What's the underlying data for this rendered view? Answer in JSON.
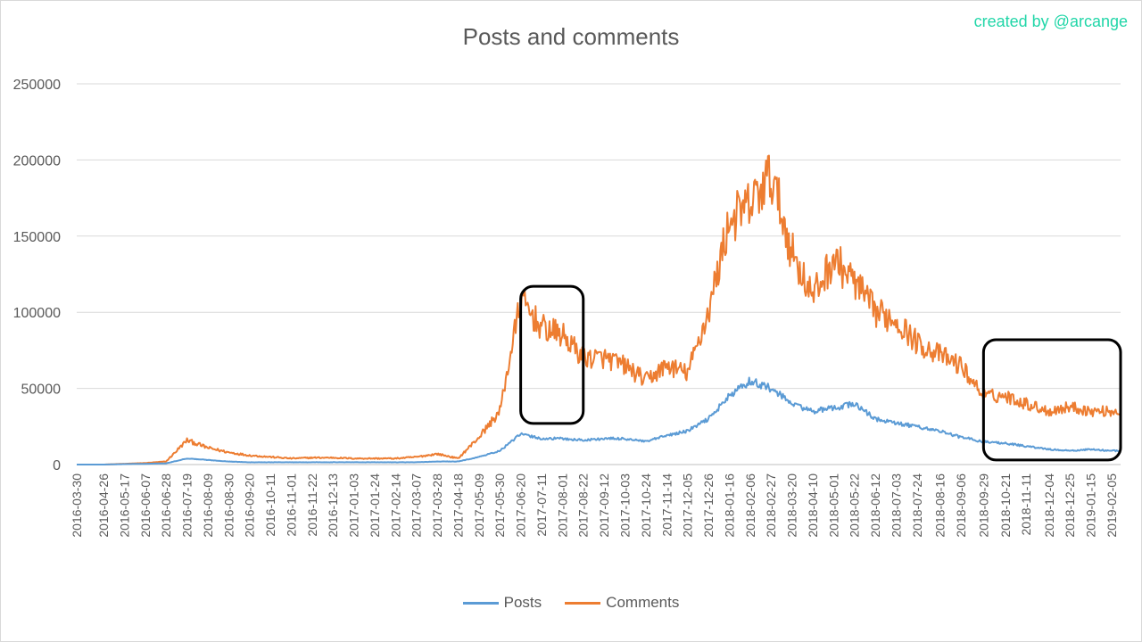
{
  "credit": "created by @arcange",
  "chart_data": {
    "type": "line",
    "title": "Posts and comments",
    "xlabel": "",
    "ylabel": "",
    "ylim": [
      0,
      250000
    ],
    "yticks": [
      0,
      50000,
      100000,
      150000,
      200000,
      250000
    ],
    "grid": "horizontal",
    "legend_position": "bottom",
    "x_tick_labels": [
      "2016-03-30",
      "2016-04-26",
      "2016-05-17",
      "2016-06-07",
      "2016-06-28",
      "2016-07-19",
      "2016-08-09",
      "2016-08-30",
      "2016-09-20",
      "2016-10-11",
      "2016-11-01",
      "2016-11-22",
      "2016-12-13",
      "2017-01-03",
      "2017-01-24",
      "2017-02-14",
      "2017-03-07",
      "2017-03-28",
      "2017-04-18",
      "2017-05-09",
      "2017-05-30",
      "2017-06-20",
      "2017-07-11",
      "2017-08-01",
      "2017-08-22",
      "2017-09-12",
      "2017-10-03",
      "2017-10-24",
      "2017-11-14",
      "2017-12-05",
      "2017-12-26",
      "2018-01-16",
      "2018-02-06",
      "2018-02-27",
      "2018-03-20",
      "2018-04-10",
      "2018-05-01",
      "2018-05-22",
      "2018-06-12",
      "2018-07-03",
      "2018-07-24",
      "2018-08-16",
      "2018-09-06",
      "2018-09-29",
      "2018-10-21",
      "2018-11-11",
      "2018-12-04",
      "2018-12-25",
      "2019-01-15",
      "2019-02-05"
    ],
    "x_dates": [
      "2016-03-30",
      "2016-04-26",
      "2016-05-17",
      "2016-06-07",
      "2016-06-28",
      "2016-07-19",
      "2016-08-09",
      "2016-08-30",
      "2016-09-20",
      "2016-10-11",
      "2016-11-01",
      "2016-11-22",
      "2016-12-13",
      "2017-01-03",
      "2017-01-24",
      "2017-02-14",
      "2017-03-07",
      "2017-03-28",
      "2017-04-18",
      "2017-05-09",
      "2017-05-30",
      "2017-06-20",
      "2017-07-11",
      "2017-08-01",
      "2017-08-22",
      "2017-09-12",
      "2017-10-03",
      "2017-10-24",
      "2017-11-14",
      "2017-12-05",
      "2017-12-26",
      "2018-01-16",
      "2018-02-06",
      "2018-02-27",
      "2018-03-20",
      "2018-04-10",
      "2018-05-01",
      "2018-05-22",
      "2018-06-12",
      "2018-07-03",
      "2018-07-24",
      "2018-08-16",
      "2018-09-06",
      "2018-09-29",
      "2018-10-21",
      "2018-11-11",
      "2018-12-04",
      "2018-12-25",
      "2019-01-15",
      "2019-02-05",
      "2019-02-14"
    ],
    "series": [
      {
        "name": "Posts",
        "color": "#5b9bd5",
        "values": [
          0,
          0,
          300,
          500,
          800,
          4000,
          3000,
          2000,
          1500,
          1500,
          1500,
          1500,
          1500,
          1500,
          1500,
          1500,
          1500,
          2000,
          2000,
          5000,
          9000,
          20000,
          17000,
          17000,
          16000,
          17000,
          17000,
          15000,
          19000,
          22000,
          30000,
          45000,
          55000,
          50000,
          40000,
          35000,
          37000,
          40000,
          30000,
          27000,
          25000,
          22000,
          18000,
          15000,
          14000,
          12000,
          10000,
          9000,
          10000,
          9000,
          9000
        ]
      },
      {
        "name": "Comments",
        "color": "#ed7d31",
        "values": [
          0,
          0,
          500,
          1000,
          2000,
          16000,
          11000,
          8000,
          6000,
          5000,
          4000,
          4500,
          4500,
          4000,
          4000,
          4000,
          5000,
          7000,
          4000,
          18000,
          35000,
          108000,
          90000,
          85000,
          70000,
          70000,
          65000,
          55000,
          65000,
          60000,
          100000,
          160000,
          170000,
          190000,
          140000,
          110000,
          135000,
          120000,
          100000,
          95000,
          80000,
          72000,
          65000,
          45000,
          45000,
          40000,
          35000,
          38000,
          35000,
          35000,
          35000
        ]
      }
    ],
    "annotations": [
      {
        "type": "box",
        "from": "2017-06-20",
        "to": "2017-08-22",
        "y_low": 27000,
        "y_high": 117000
      },
      {
        "type": "box",
        "from": "2018-09-29",
        "to": "2019-02-14",
        "y_low": 3000,
        "y_high": 82000
      }
    ]
  }
}
